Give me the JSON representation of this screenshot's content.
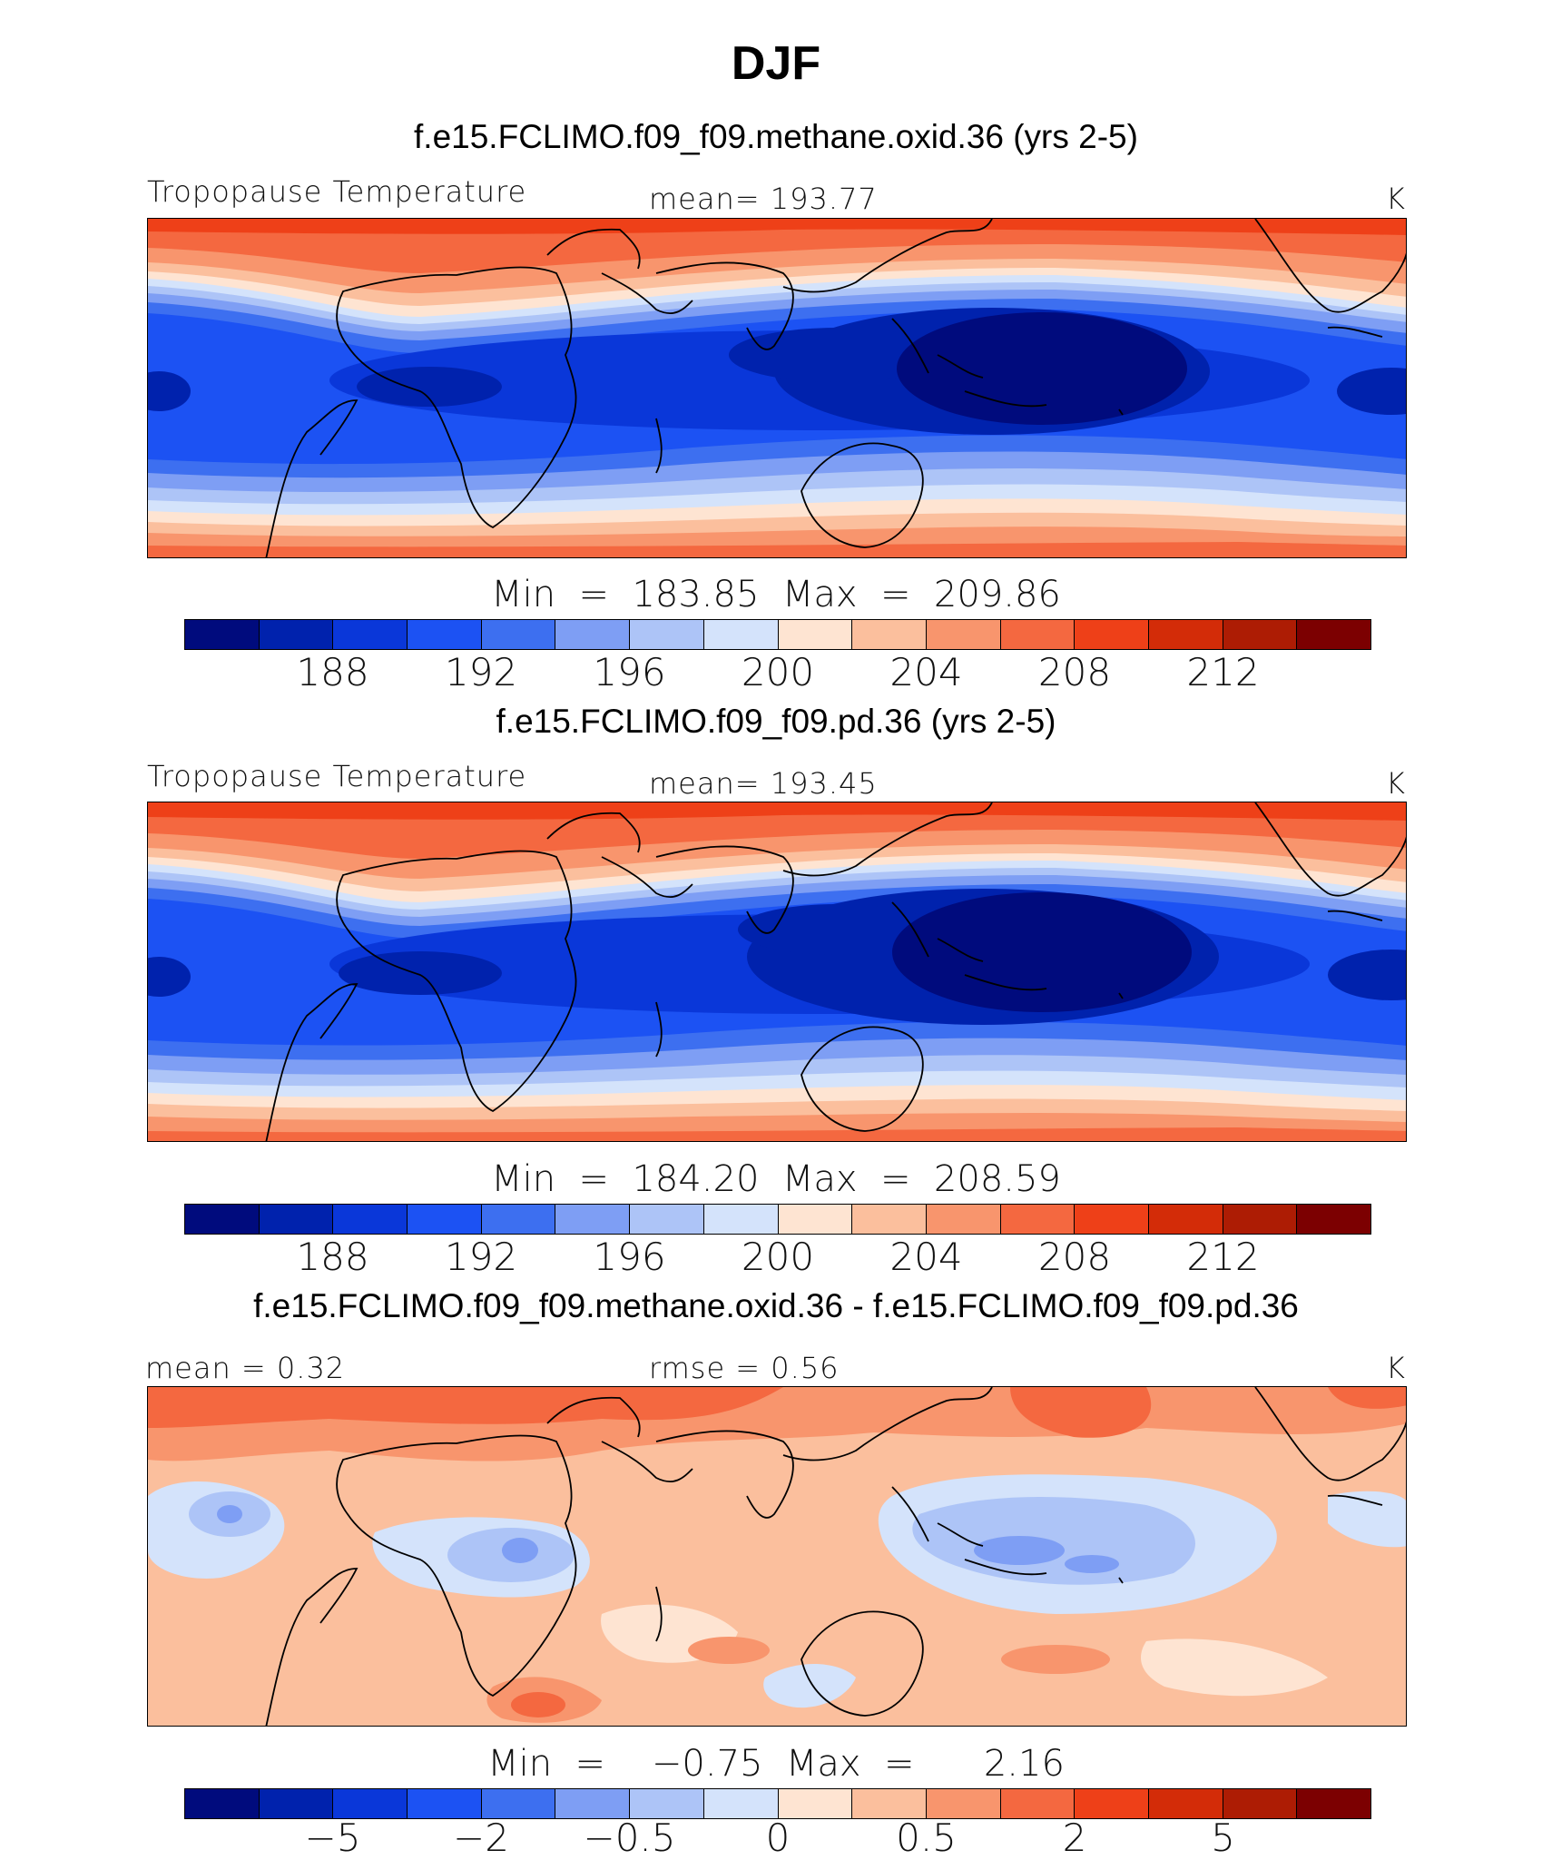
{
  "title": "DJF",
  "colors": [
    "#000b7d",
    "#0022ad",
    "#0a37d9",
    "#1c52f3",
    "#3d6ff0",
    "#7e9ef4",
    "#adc4f7",
    "#d4e3fb",
    "#fee4d2",
    "#fbbf9d",
    "#f8956d",
    "#f46840",
    "#ee4018",
    "#d32c08",
    "#ad1c04",
    "#7c0001"
  ],
  "panels": [
    {
      "case_title": "f.e15.FCLIMO.f09_f09.methane.oxid.36 (yrs 2-5)",
      "left_label": "Tropopause Temperature",
      "center_label": "mean=  193.77",
      "units": "K",
      "minmax": "Min  =  183.85  Max  =  209.86",
      "ticks": [
        "188",
        "192",
        "196",
        "200",
        "204",
        "208",
        "212"
      ]
    },
    {
      "case_title": "f.e15.FCLIMO.f09_f09.pd.36 (yrs 2-5)",
      "left_label": "Tropopause Temperature",
      "center_label": "mean=  193.45",
      "units": "K",
      "minmax": "Min  =  184.20  Max  =  208.59",
      "ticks": [
        "188",
        "192",
        "196",
        "200",
        "204",
        "208",
        "212"
      ]
    },
    {
      "case_title": "f.e15.FCLIMO.f09_f09.methane.oxid.36 - f.e15.FCLIMO.f09_f09.pd.36",
      "left_label": "mean =     0.32",
      "center_label": "rmse =     0.56",
      "units": "K",
      "minmax": "Min  =    −0.75  Max  =      2.16",
      "ticks": [
        "−5",
        "−2",
        "−0.5",
        "0",
        "0.5",
        "2",
        "5"
      ]
    }
  ]
}
